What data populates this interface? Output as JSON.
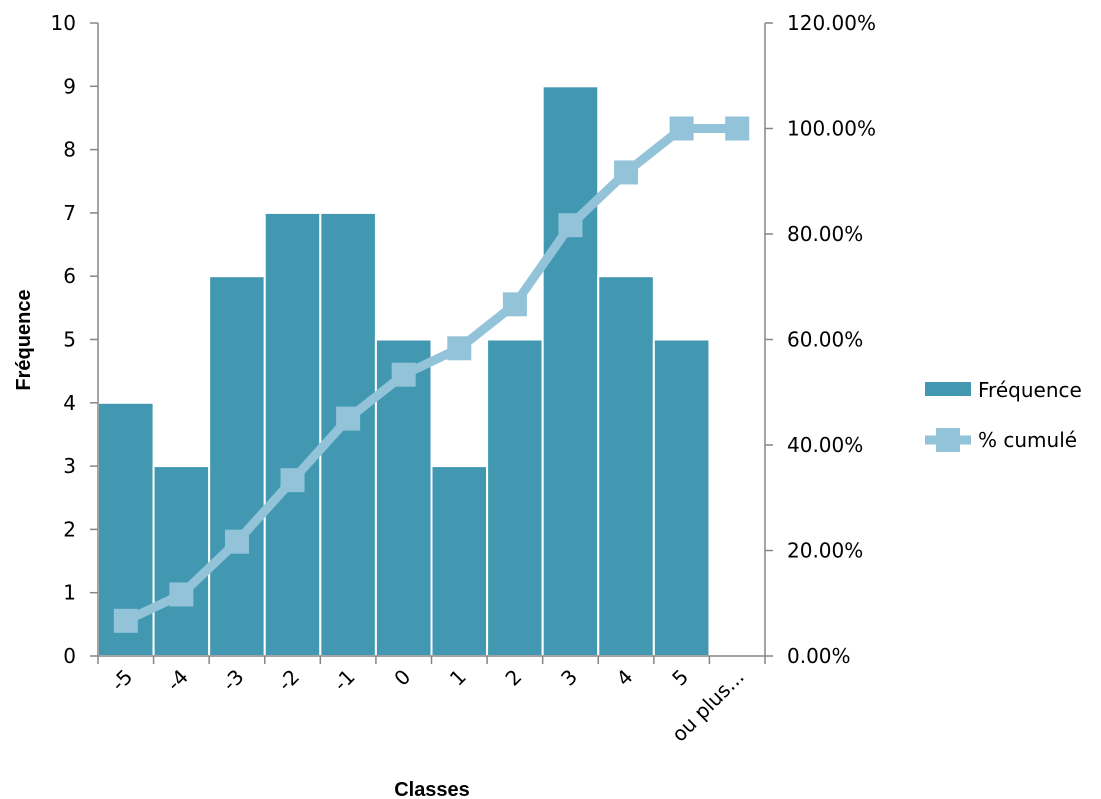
{
  "chart_data": {
    "type": "bar",
    "categories": [
      "-5",
      "-4",
      "-3",
      "-2",
      "-1",
      "0",
      "1",
      "2",
      "3",
      "4",
      "5",
      "ou plus..."
    ],
    "series": [
      {
        "name": "Fréquence",
        "type": "bar",
        "axis": "left",
        "values": [
          4,
          3,
          6,
          7,
          7,
          5,
          3,
          5,
          9,
          6,
          5,
          0
        ]
      },
      {
        "name": "% cumulé",
        "type": "line",
        "axis": "right",
        "values": [
          6.67,
          11.67,
          21.67,
          33.33,
          45.0,
          53.33,
          58.33,
          66.67,
          81.67,
          91.67,
          100.0,
          100.0
        ]
      }
    ],
    "xlabel": "Classes",
    "ylabel": "Fréquence",
    "ylim": [
      0,
      10
    ],
    "y2lim": [
      0,
      120
    ],
    "yticks": [
      "0",
      "1",
      "2",
      "3",
      "4",
      "5",
      "6",
      "7",
      "8",
      "9",
      "10"
    ],
    "y2ticks": [
      "0.00%",
      "20.00%",
      "40.00%",
      "60.00%",
      "80.00%",
      "100.00%",
      "120.00%"
    ],
    "grid": false,
    "legend_position": "right",
    "colors": {
      "bar": "#4298B0",
      "line": "#93C3D8",
      "axis": "#868686"
    }
  }
}
